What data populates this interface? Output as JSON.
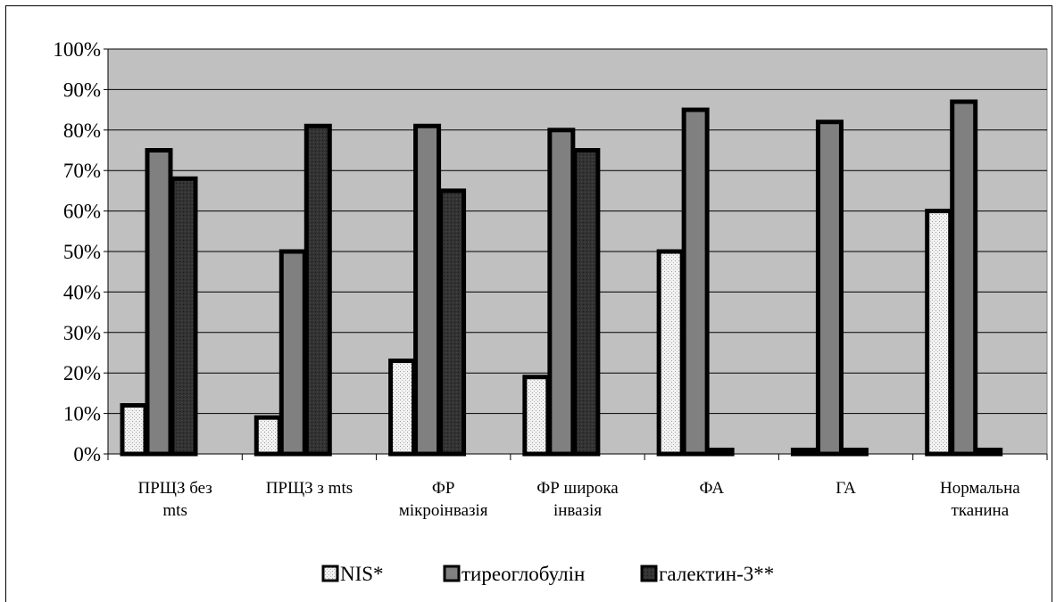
{
  "chart_data": {
    "type": "bar",
    "categories": [
      [
        "ПРЩЗ без",
        "mts"
      ],
      [
        "ПРЩЗ з mts"
      ],
      [
        "ФР",
        "мікроінвазія"
      ],
      [
        "ФР широка",
        "інвазія"
      ],
      [
        "ФА"
      ],
      [
        "ГА"
      ],
      [
        "Нормальна",
        "тканина"
      ]
    ],
    "series": [
      {
        "name": "NIS*",
        "values": [
          12,
          9,
          23,
          19,
          50,
          1,
          60
        ],
        "color": "#f2f2f2"
      },
      {
        "name": "тиреоглобулін",
        "values": [
          75,
          50,
          81,
          80,
          85,
          82,
          87
        ],
        "color": "#808080"
      },
      {
        "name": "галектин-3**",
        "values": [
          68,
          81,
          65,
          75,
          1,
          1,
          1
        ],
        "color": "#333333"
      }
    ],
    "y_ticks": [
      "0%",
      "10%",
      "20%",
      "30%",
      "40%",
      "50%",
      "60%",
      "70%",
      "80%",
      "90%",
      "100%"
    ],
    "ylim": [
      0,
      100
    ],
    "plot_background": "#c0c0c0",
    "grid": true,
    "legend_position": "bottom"
  }
}
